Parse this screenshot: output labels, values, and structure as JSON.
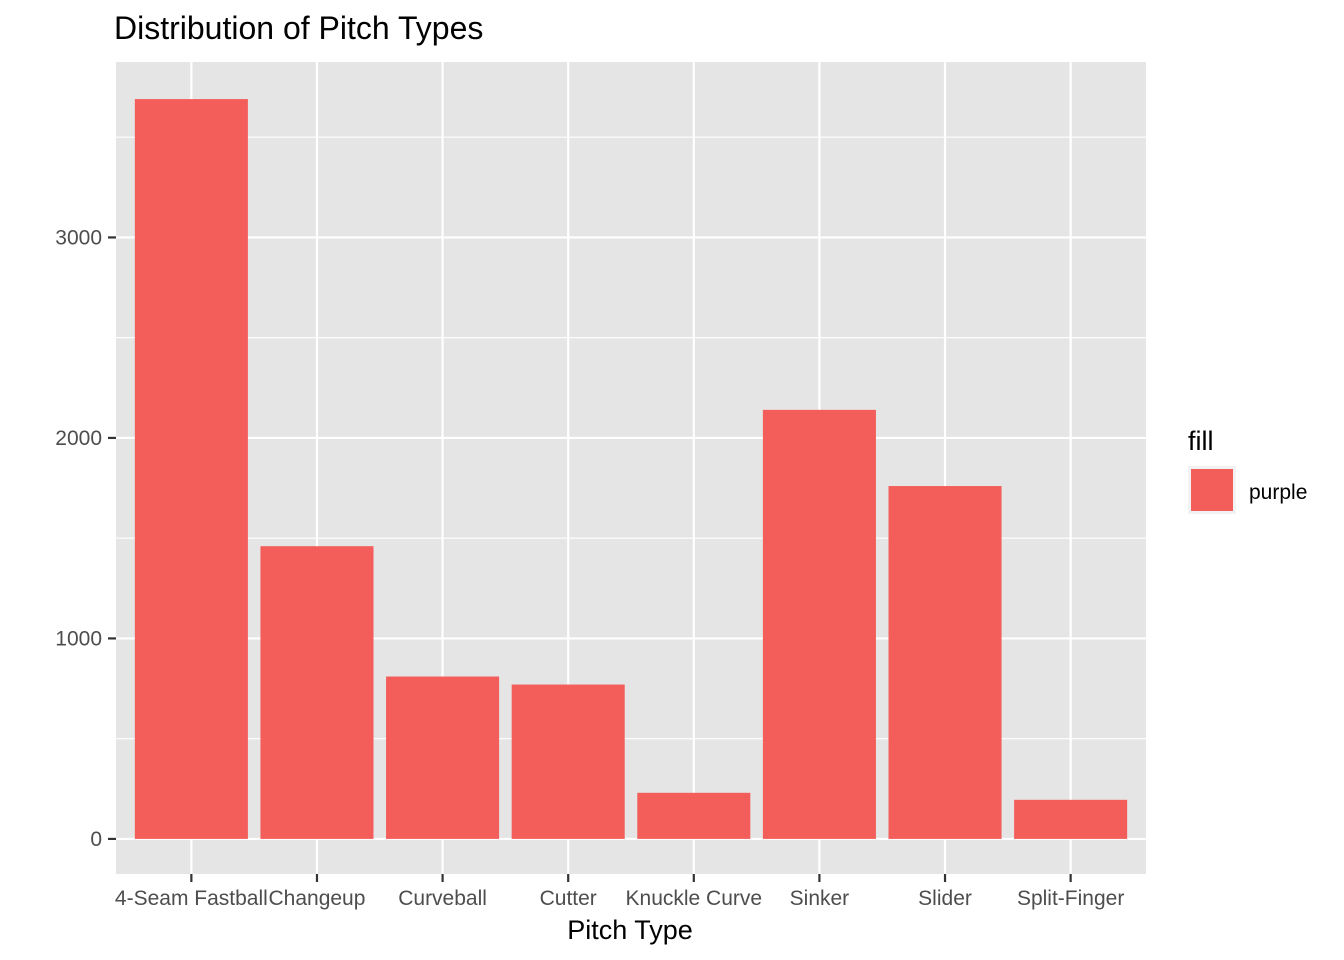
{
  "chart_data": {
    "type": "bar",
    "title": "Distribution of Pitch Types",
    "xlabel": "Pitch Type",
    "ylabel": "",
    "categories": [
      "4-Seam Fastball",
      "Changeup",
      "Curveball",
      "Cutter",
      "Knuckle Curve",
      "Sinker",
      "Slider",
      "Split-Finger"
    ],
    "values": [
      3690,
      1460,
      810,
      770,
      230,
      2140,
      1760,
      195
    ],
    "ylim": [
      -175,
      3875
    ],
    "yticks": [
      0,
      1000,
      2000,
      3000
    ],
    "grid": true,
    "legend": {
      "title": "fill",
      "entries": [
        {
          "label": "purple",
          "color": "#f35e5a"
        }
      ],
      "position": "right"
    },
    "colors": {
      "bar": "#f35e5a",
      "panel": "#e5e5e5",
      "grid": "#ffffff"
    }
  }
}
